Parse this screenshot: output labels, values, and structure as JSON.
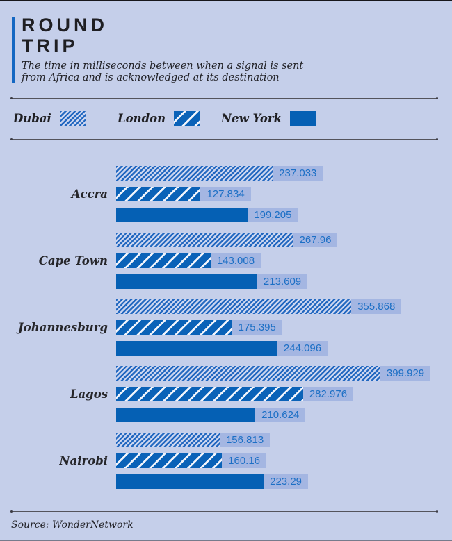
{
  "header": {
    "title_line1": "ROUND",
    "title_line2": "TRIP",
    "subtitle_line1": "The time in milliseconds between when a signal is sent",
    "subtitle_line2": "from Africa and is acknowledged at its destination"
  },
  "legend": [
    {
      "label": "Dubai",
      "swatch": "fine-diagonal-hatch"
    },
    {
      "label": "London",
      "swatch": "coarse-diagonal-hatch"
    },
    {
      "label": "New York",
      "swatch": "solid"
    }
  ],
  "chart_data": {
    "type": "bar",
    "orientation": "horizontal",
    "title": "ROUND TRIP",
    "subtitle": "The time in milliseconds between when a signal is sent from Africa and is acknowledged at its destination",
    "unit": "milliseconds",
    "xlim": [
      0,
      420
    ],
    "grid": false,
    "legend_position": "top",
    "categories": [
      "Accra",
      "Cape Town",
      "Johannesburg",
      "Lagos",
      "Nairobi"
    ],
    "series": [
      {
        "name": "Dubai",
        "style": "fine-diagonal-hatch",
        "values": [
          237.033,
          267.96,
          355.868,
          399.929,
          156.813
        ],
        "labels": [
          "237.033",
          "267.96",
          "355.868",
          "399.929",
          "156.813"
        ]
      },
      {
        "name": "London",
        "style": "coarse-diagonal-hatch",
        "values": [
          127.834,
          143.008,
          175.395,
          282.976,
          160.16
        ],
        "labels": [
          "127.834",
          "143.008",
          "175.395",
          "282.976",
          "160.16"
        ]
      },
      {
        "name": "New York",
        "style": "solid",
        "values": [
          199.205,
          213.609,
          244.096,
          210.624,
          223.29
        ],
        "labels": [
          "199.205",
          "213.609",
          "244.096",
          "210.624",
          "223.29"
        ]
      }
    ]
  },
  "footer": {
    "source": "Source: WonderNetwork"
  },
  "colors": {
    "background": "#c5cfea",
    "bar_blue": "#0560b4",
    "hatch_blue": "#2368c0",
    "hatch_gap_light": "#ccd6f0",
    "hatch_gap_white": "#f2f5fc",
    "value_box_bg": "#a4b6e2",
    "value_text": "#1c6fc5",
    "accent_bar": "#1467c2",
    "text_dark": "#1f1f23",
    "rule": "#54545c"
  }
}
